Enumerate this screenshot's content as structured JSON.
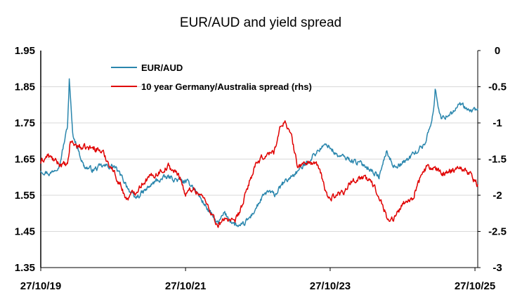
{
  "chart_data": {
    "type": "line",
    "title": "EUR/AUD and yield spread",
    "x_tick_labels": [
      "27/10/19",
      "27/10/21",
      "27/10/23",
      "27/10/25"
    ],
    "x_range": [
      "2019-10-27",
      "2025-11-10"
    ],
    "y_left": {
      "ticks": [
        "1.95",
        "1.85",
        "1.75",
        "1.65",
        "1.55",
        "1.45",
        "1.35"
      ],
      "range": [
        1.35,
        1.95
      ]
    },
    "y_right": {
      "ticks": [
        "0",
        "-0.5",
        "-1",
        "-1.5",
        "-2",
        "-2.5",
        "-3"
      ],
      "range": [
        -3,
        0
      ]
    },
    "grid": "horizontal",
    "legend_position": "top-center",
    "series": [
      {
        "name": "EUR/AUD",
        "axis": "left",
        "color": "#2a86ad",
        "points": [
          [
            "2019-10-27",
            1.62
          ],
          [
            "2019-12-15",
            1.61
          ],
          [
            "2020-02-01",
            1.64
          ],
          [
            "2020-03-10",
            1.74
          ],
          [
            "2020-03-19",
            1.87
          ],
          [
            "2020-04-05",
            1.72
          ],
          [
            "2020-05-01",
            1.68
          ],
          [
            "2020-06-01",
            1.63
          ],
          [
            "2020-07-15",
            1.62
          ],
          [
            "2020-09-01",
            1.63
          ],
          [
            "2020-11-01",
            1.63
          ],
          [
            "2021-01-01",
            1.58
          ],
          [
            "2021-02-10",
            1.54
          ],
          [
            "2021-04-01",
            1.56
          ],
          [
            "2021-06-01",
            1.59
          ],
          [
            "2021-08-01",
            1.6
          ],
          [
            "2021-10-01",
            1.59
          ],
          [
            "2021-11-27",
            1.58
          ],
          [
            "2022-01-01",
            1.55
          ],
          [
            "2022-03-01",
            1.5
          ],
          [
            "2022-04-10",
            1.47
          ],
          [
            "2022-05-10",
            1.5
          ],
          [
            "2022-07-01",
            1.47
          ],
          [
            "2022-08-01",
            1.46
          ],
          [
            "2022-09-20",
            1.49
          ],
          [
            "2022-11-15",
            1.54
          ],
          [
            "2022-12-15",
            1.56
          ],
          [
            "2023-01-20",
            1.55
          ],
          [
            "2023-03-01",
            1.58
          ],
          [
            "2023-05-01",
            1.61
          ],
          [
            "2023-06-15",
            1.63
          ],
          [
            "2023-08-01",
            1.66
          ],
          [
            "2023-09-10",
            1.68
          ],
          [
            "2023-10-15",
            1.69
          ],
          [
            "2023-12-01",
            1.66
          ],
          [
            "2024-02-01",
            1.65
          ],
          [
            "2024-03-15",
            1.64
          ],
          [
            "2024-05-01",
            1.63
          ],
          [
            "2024-07-01",
            1.6
          ],
          [
            "2024-08-05",
            1.67
          ],
          [
            "2024-09-15",
            1.63
          ],
          [
            "2024-11-01",
            1.64
          ],
          [
            "2025-01-01",
            1.67
          ],
          [
            "2025-02-15",
            1.69
          ],
          [
            "2025-04-01",
            1.78
          ],
          [
            "2025-04-09",
            1.84
          ],
          [
            "2025-05-10",
            1.76
          ],
          [
            "2025-07-01",
            1.78
          ],
          [
            "2025-08-15",
            1.8
          ],
          [
            "2025-10-01",
            1.78
          ],
          [
            "2025-11-10",
            1.79
          ]
        ]
      },
      {
        "name": "10 year Germany/Australia spread (rhs)",
        "axis": "right",
        "color": "#e00000",
        "points": [
          [
            "2019-10-27",
            -1.55
          ],
          [
            "2019-12-01",
            -1.45
          ],
          [
            "2020-01-15",
            -1.55
          ],
          [
            "2020-03-10",
            -1.6
          ],
          [
            "2020-03-25",
            -1.25
          ],
          [
            "2020-04-15",
            -1.3
          ],
          [
            "2020-06-01",
            -1.35
          ],
          [
            "2020-08-01",
            -1.35
          ],
          [
            "2020-09-01",
            -1.4
          ],
          [
            "2020-10-15",
            -1.6
          ],
          [
            "2020-12-01",
            -1.85
          ],
          [
            "2021-01-01",
            -2.05
          ],
          [
            "2021-02-15",
            -1.95
          ],
          [
            "2021-04-01",
            -1.8
          ],
          [
            "2021-06-01",
            -1.7
          ],
          [
            "2021-08-01",
            -1.6
          ],
          [
            "2021-10-01",
            -1.75
          ],
          [
            "2021-10-27",
            -2.0
          ],
          [
            "2021-12-01",
            -1.9
          ],
          [
            "2022-01-15",
            -2.0
          ],
          [
            "2022-03-01",
            -2.2
          ],
          [
            "2022-04-10",
            -2.45
          ],
          [
            "2022-05-15",
            -2.3
          ],
          [
            "2022-07-01",
            -2.4
          ],
          [
            "2022-08-15",
            -2.1
          ],
          [
            "2022-09-15",
            -1.8
          ],
          [
            "2022-10-15",
            -1.6
          ],
          [
            "2022-12-01",
            -1.45
          ],
          [
            "2023-01-15",
            -1.4
          ],
          [
            "2023-02-15",
            -1.1
          ],
          [
            "2023-03-10",
            -0.95
          ],
          [
            "2023-04-15",
            -1.2
          ],
          [
            "2023-05-15",
            -1.6
          ],
          [
            "2023-07-01",
            -1.55
          ],
          [
            "2023-08-15",
            -1.55
          ],
          [
            "2023-09-15",
            -1.75
          ],
          [
            "2023-10-15",
            -2.05
          ],
          [
            "2023-11-20",
            -2.0
          ],
          [
            "2024-01-01",
            -1.95
          ],
          [
            "2024-02-15",
            -1.8
          ],
          [
            "2024-04-01",
            -1.75
          ],
          [
            "2024-05-15",
            -1.8
          ],
          [
            "2024-07-01",
            -2.0
          ],
          [
            "2024-08-15",
            -2.35
          ],
          [
            "2024-09-20",
            -2.3
          ],
          [
            "2024-11-01",
            -2.1
          ],
          [
            "2024-12-15",
            -2.05
          ],
          [
            "2025-01-15",
            -1.8
          ],
          [
            "2025-03-01",
            -1.6
          ],
          [
            "2025-04-10",
            -1.65
          ],
          [
            "2025-05-15",
            -1.7
          ],
          [
            "2025-07-01",
            -1.65
          ],
          [
            "2025-08-15",
            -1.6
          ],
          [
            "2025-10-01",
            -1.7
          ],
          [
            "2025-11-10",
            -1.85
          ]
        ]
      }
    ]
  }
}
